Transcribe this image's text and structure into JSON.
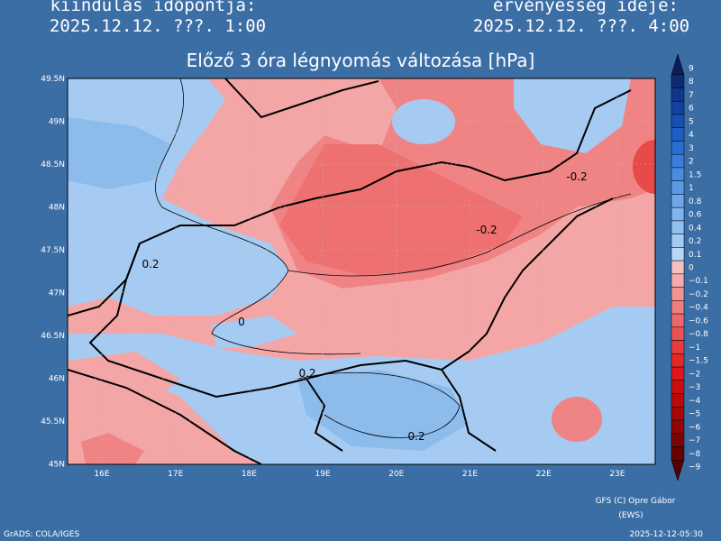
{
  "header": {
    "left_label": "kiindulás időpontja:",
    "left_time": "2025.12.12. ???. 1:00",
    "right_label": "érvényesség ideje:",
    "right_time": "2025.12.12. ???. 4:00"
  },
  "title": "Előző 3 óra légnyomás változása [hPa]",
  "lat_labels": [
    "49.5N",
    "49N",
    "48.5N",
    "48N",
    "47.5N",
    "47N",
    "46.5N",
    "46N",
    "45.5N",
    "45N"
  ],
  "lon_labels": [
    "16E",
    "17E",
    "18E",
    "19E",
    "20E",
    "21E",
    "22E",
    "23E"
  ],
  "contour_labels": [
    "-0.2",
    "-0.2",
    "0.2",
    "0",
    "0.2",
    "0.2"
  ],
  "legend": {
    "items": [
      {
        "label": "9",
        "color": "#0a1e5a"
      },
      {
        "label": "8",
        "color": "#0c2a72"
      },
      {
        "label": "7",
        "color": "#0e368a"
      },
      {
        "label": "6",
        "color": "#1242a0"
      },
      {
        "label": "5",
        "color": "#1650b4"
      },
      {
        "label": "4",
        "color": "#1e5ec4"
      },
      {
        "label": "3",
        "color": "#2a6ed2"
      },
      {
        "label": "2",
        "color": "#3a7edc"
      },
      {
        "label": "1.5",
        "color": "#4a8ce2"
      },
      {
        "label": "1",
        "color": "#5c9ae6"
      },
      {
        "label": "0.8",
        "color": "#6ea8ea"
      },
      {
        "label": "0.6",
        "color": "#80b4ee"
      },
      {
        "label": "0.4",
        "color": "#92c0f0"
      },
      {
        "label": "0.2",
        "color": "#a4ccf2"
      },
      {
        "label": "0.1",
        "color": "#b6d8f6"
      },
      {
        "label": "0",
        "color": "#f6c0c0"
      },
      {
        "label": "−0.1",
        "color": "#f4aaaa"
      },
      {
        "label": "−0.2",
        "color": "#f29494"
      },
      {
        "label": "−0.4",
        "color": "#f07e7e"
      },
      {
        "label": "−0.6",
        "color": "#ee6868"
      },
      {
        "label": "−0.8",
        "color": "#ec5252"
      },
      {
        "label": "−1",
        "color": "#e83c3c"
      },
      {
        "label": "−1.5",
        "color": "#e42828"
      },
      {
        "label": "−2",
        "color": "#dc1818"
      },
      {
        "label": "−3",
        "color": "#cc0e0e"
      },
      {
        "label": "−4",
        "color": "#b80a0a"
      },
      {
        "label": "−5",
        "color": "#a40808"
      },
      {
        "label": "−6",
        "color": "#900606"
      },
      {
        "label": "−7",
        "color": "#7c0404"
      },
      {
        "label": "−8",
        "color": "#680202"
      },
      {
        "label": "−9",
        "color": "#540000"
      }
    ]
  },
  "footer": {
    "credit": "GFS (C) Opre Gábor",
    "credit2": "(EWS)",
    "software": "GrADS: COLA/IGES",
    "timestamp": "2025-12-12-05:30"
  }
}
